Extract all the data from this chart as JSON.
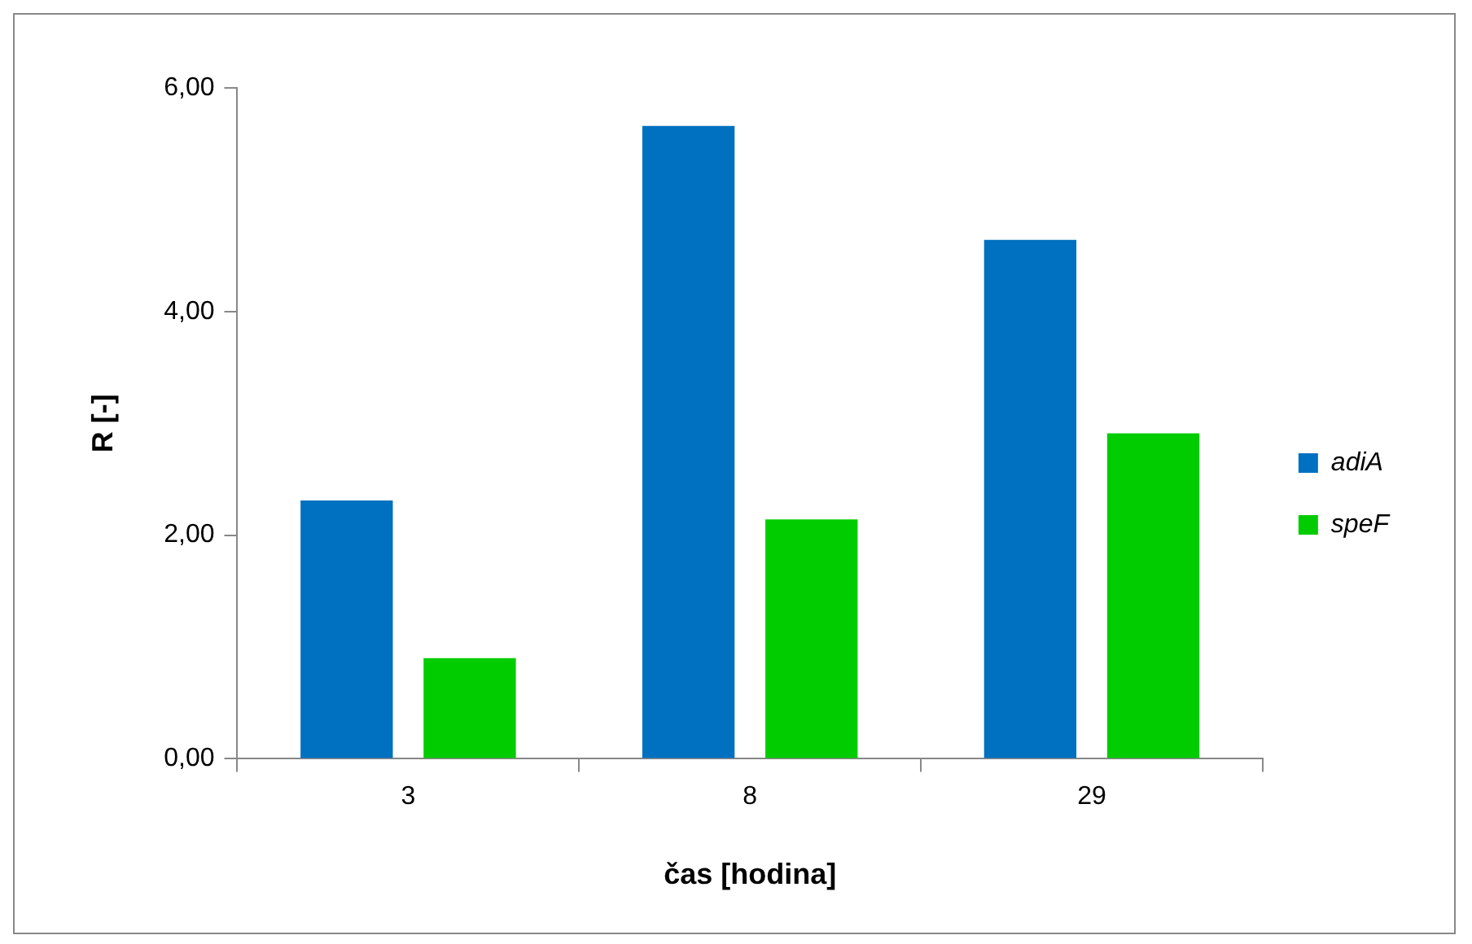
{
  "chart_data": {
    "type": "bar",
    "xlabel": "čas [hodina]",
    "ylabel": "R [-]",
    "categories": [
      "3",
      "8",
      "29"
    ],
    "series": [
      {
        "name": "adiA",
        "color": "#0070c0",
        "values": [
          2.31,
          5.66,
          4.64
        ]
      },
      {
        "name": "speF",
        "color": "#00cc00",
        "values": [
          0.9,
          2.14,
          2.91
        ]
      }
    ],
    "ylim": [
      0,
      6
    ],
    "yticks": [
      {
        "value": 0,
        "label": "0,00"
      },
      {
        "value": 2,
        "label": "2,00"
      },
      {
        "value": 4,
        "label": "4,00"
      },
      {
        "value": 6,
        "label": "6,00"
      }
    ],
    "grid": false,
    "legend": "right"
  }
}
